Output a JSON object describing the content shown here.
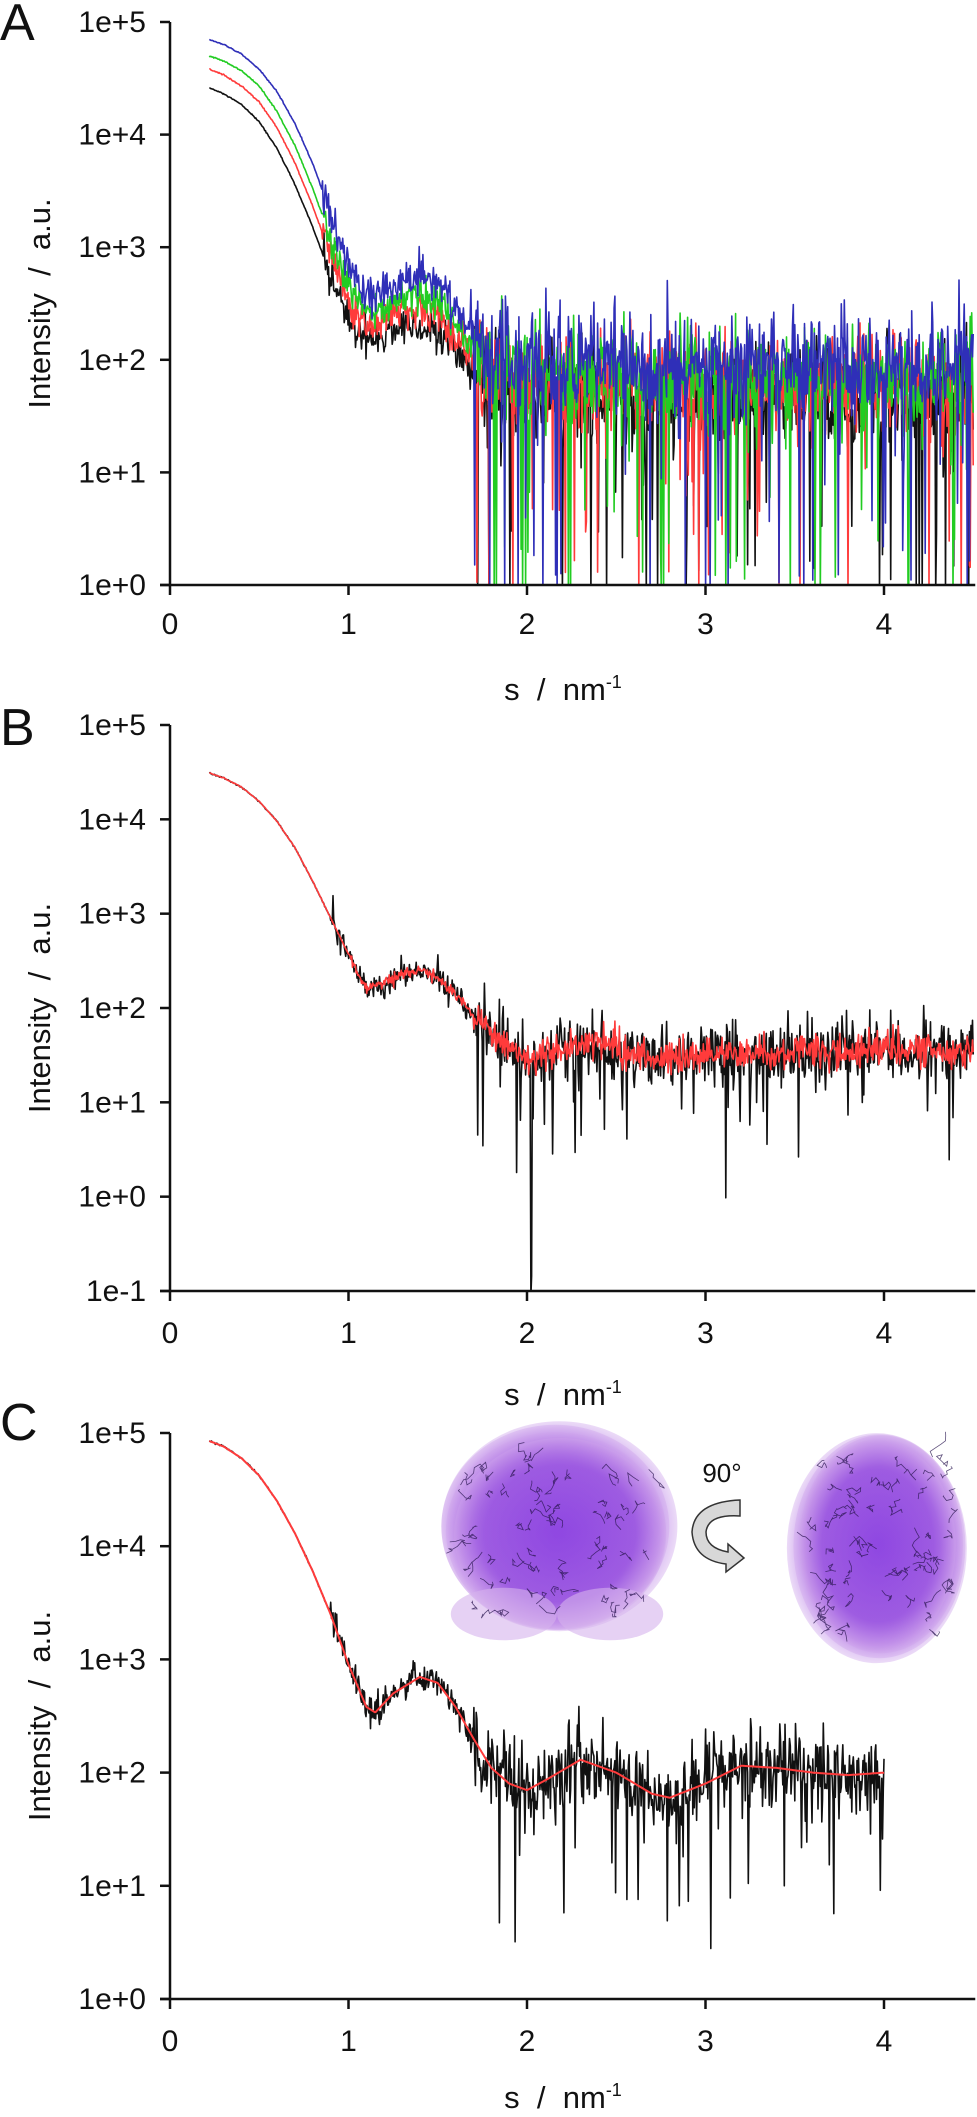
{
  "chart_data": [
    {
      "panel": "A",
      "type": "line",
      "xlabel": "s  /  nm",
      "xlabel_superscript": "-1",
      "ylabel": "Intensity  /  a.u.",
      "xlim": [
        0,
        4.5
      ],
      "ylim": [
        1,
        100000
      ],
      "yscale": "log",
      "grid": false,
      "xticks": [
        "0",
        "1",
        "2",
        "3",
        "4"
      ],
      "yticks": [
        "1e+0",
        "1e+1",
        "1e+2",
        "1e+3",
        "1e+4",
        "1e+5"
      ],
      "s": [
        0.22,
        0.3,
        0.4,
        0.5,
        0.6,
        0.7,
        0.8,
        0.9,
        1.0,
        1.1,
        1.2,
        1.3,
        1.4,
        1.5,
        1.6,
        1.7,
        1.8,
        2.0,
        2.5,
        3.0,
        3.5,
        4.0,
        4.5
      ],
      "series": [
        {
          "color": "#111111",
          "values": [
            26000,
            23000,
            18500,
            13000,
            7500,
            3600,
            1500,
            560,
            230,
            150,
            170,
            200,
            200,
            170,
            120,
            80,
            55,
            45,
            45,
            45,
            45,
            45,
            45
          ]
        },
        {
          "color": "#ff3b3b",
          "values": [
            38000,
            34000,
            27000,
            19500,
            11500,
            5600,
            2300,
            850,
            330,
            200,
            230,
            270,
            280,
            240,
            170,
            110,
            75,
            60,
            60,
            60,
            60,
            60,
            60
          ]
        },
        {
          "color": "#22cc22",
          "values": [
            50000,
            45000,
            37000,
            27000,
            16000,
            8000,
            3300,
            1200,
            450,
            260,
            300,
            360,
            380,
            320,
            220,
            140,
            90,
            70,
            70,
            70,
            70,
            70,
            75
          ]
        },
        {
          "color": "#2f2fb8",
          "values": [
            70000,
            63000,
            52000,
            38000,
            24000,
            12500,
            5500,
            2000,
            700,
            380,
            420,
            520,
            560,
            480,
            330,
            200,
            130,
            100,
            95,
            95,
            95,
            95,
            100
          ]
        }
      ]
    },
    {
      "panel": "B",
      "type": "line",
      "xlabel": "s  /  nm",
      "xlabel_superscript": "-1",
      "ylabel": "Intensity  /  a.u.",
      "xlim": [
        0,
        4.5
      ],
      "ylim": [
        0.1,
        100000
      ],
      "yscale": "log",
      "grid": false,
      "xticks": [
        "0",
        "1",
        "2",
        "3",
        "4"
      ],
      "yticks": [
        "1e-1",
        "1e+0",
        "1e+1",
        "1e+2",
        "1e+3",
        "1e+4",
        "1e+5"
      ],
      "s": [
        0.22,
        0.3,
        0.4,
        0.5,
        0.6,
        0.7,
        0.8,
        0.9,
        1.0,
        1.1,
        1.2,
        1.3,
        1.4,
        1.5,
        1.6,
        1.7,
        1.8,
        1.9,
        2.0,
        2.2,
        2.4,
        2.6,
        2.8,
        3.0,
        3.5,
        4.0,
        4.5
      ],
      "series": [
        {
          "color": "#111111",
          "values": [
            31000,
            27500,
            22000,
            15500,
            9500,
            5000,
            2200,
            900,
            370,
            160,
            180,
            230,
            250,
            210,
            140,
            85,
            55,
            38,
            30,
            38,
            42,
            32,
            28,
            32,
            34,
            35,
            35
          ]
        },
        {
          "color": "#ff3b3b",
          "values": [
            31000,
            27500,
            22000,
            15500,
            9500,
            5000,
            2200,
            900,
            370,
            160,
            180,
            230,
            250,
            210,
            140,
            85,
            55,
            38,
            30,
            38,
            42,
            32,
            28,
            32,
            34,
            35,
            35
          ]
        }
      ]
    },
    {
      "panel": "C",
      "type": "line",
      "xlabel": "s  /  nm",
      "xlabel_superscript": "-1",
      "ylabel": "Intensity  /  a.u.",
      "xlim": [
        0,
        4.5
      ],
      "ylim": [
        1,
        100000
      ],
      "yscale": "log",
      "grid": false,
      "xticks": [
        "0",
        "1",
        "2",
        "3",
        "4"
      ],
      "yticks": [
        "1e+0",
        "1e+1",
        "1e+2",
        "1e+3",
        "1e+4",
        "1e+5"
      ],
      "s": [
        0.22,
        0.3,
        0.4,
        0.5,
        0.6,
        0.7,
        0.8,
        0.9,
        1.0,
        1.1,
        1.15,
        1.25,
        1.4,
        1.5,
        1.6,
        1.7,
        1.8,
        1.9,
        2.0,
        2.1,
        2.3,
        2.5,
        2.7,
        2.8,
        3.0,
        3.2,
        3.4,
        3.6,
        3.8,
        4.0
      ],
      "series": [
        {
          "color": "#111111",
          "values": [
            85000,
            76000,
            60000,
            42000,
            25000,
            13000,
            6000,
            2500,
            900,
            380,
            340,
            500,
            700,
            620,
            380,
            200,
            110,
            80,
            70,
            85,
            130,
            100,
            65,
            60,
            80,
            115,
            110,
            100,
            95,
            100
          ]
        },
        {
          "color": "#ff3b3b",
          "values": [
            85000,
            76000,
            60000,
            42000,
            25000,
            13000,
            6000,
            2500,
            900,
            380,
            340,
            500,
            700,
            620,
            380,
            200,
            110,
            80,
            70,
            85,
            130,
            100,
            65,
            60,
            80,
            115,
            110,
            100,
            95,
            100
          ]
        }
      ],
      "inset": {
        "rotation_label": "90°"
      }
    }
  ]
}
